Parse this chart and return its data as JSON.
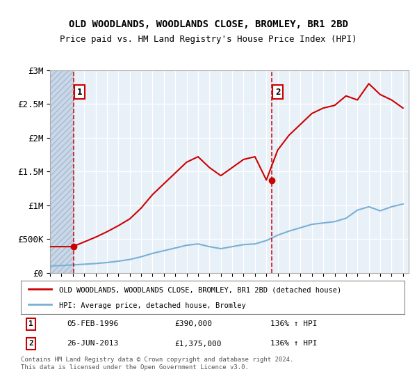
{
  "title": "OLD WOODLANDS, WOODLANDS CLOSE, BROMLEY, BR1 2BD",
  "subtitle": "Price paid vs. HM Land Registry's House Price Index (HPI)",
  "ylabel": "",
  "ylim": [
    0,
    3000000
  ],
  "yticks": [
    0,
    500000,
    1000000,
    1500000,
    2000000,
    2500000,
    3000000
  ],
  "ytick_labels": [
    "£0",
    "£500K",
    "£1M",
    "£1.5M",
    "£2M",
    "£2.5M",
    "£3M"
  ],
  "xlim_start": 1994.0,
  "xlim_end": 2025.5,
  "xticks": [
    1994,
    1995,
    1996,
    1997,
    1998,
    1999,
    2000,
    2001,
    2002,
    2003,
    2004,
    2005,
    2006,
    2007,
    2008,
    2009,
    2010,
    2011,
    2012,
    2013,
    2014,
    2015,
    2016,
    2017,
    2018,
    2019,
    2020,
    2021,
    2022,
    2023,
    2024,
    2025
  ],
  "background_color": "#ffffff",
  "plot_bg_color": "#e8f0f8",
  "hatch_color": "#c8d0d8",
  "grid_color": "#ffffff",
  "hpi_line_color": "#7ab0d4",
  "price_line_color": "#cc0000",
  "annotation_color": "#cc0000",
  "purchase1_x": 1996.09,
  "purchase1_y": 390000,
  "purchase1_label": "1",
  "purchase2_x": 2013.48,
  "purchase2_y": 1375000,
  "purchase2_label": "2",
  "legend_price_label": "OLD WOODLANDS, WOODLANDS CLOSE, BROMLEY, BR1 2BD (detached house)",
  "legend_hpi_label": "HPI: Average price, detached house, Bromley",
  "table_row1": [
    "1",
    "05-FEB-1996",
    "£390,000",
    "136% ↑ HPI"
  ],
  "table_row2": [
    "2",
    "26-JUN-2013",
    "£1,375,000",
    "136% ↑ HPI"
  ],
  "footer": "Contains HM Land Registry data © Crown copyright and database right 2024.\nThis data is licensed under the Open Government Licence v3.0.",
  "hpi_years": [
    1994,
    1995,
    1996,
    1997,
    1998,
    1999,
    2000,
    2001,
    2002,
    2003,
    2004,
    2005,
    2006,
    2007,
    2008,
    2009,
    2010,
    2011,
    2012,
    2013,
    2014,
    2015,
    2016,
    2017,
    2018,
    2019,
    2020,
    2021,
    2022,
    2023,
    2024,
    2025
  ],
  "hpi_values": [
    105000,
    110000,
    120000,
    130000,
    140000,
    155000,
    175000,
    200000,
    240000,
    290000,
    330000,
    370000,
    410000,
    430000,
    390000,
    360000,
    390000,
    420000,
    430000,
    480000,
    560000,
    620000,
    670000,
    720000,
    740000,
    760000,
    810000,
    930000,
    980000,
    920000,
    980000,
    1020000
  ],
  "price_years": [
    1994,
    1995,
    1996,
    1997,
    1998,
    1999,
    2000,
    2001,
    2002,
    2003,
    2004,
    2005,
    2006,
    2007,
    2008,
    2009,
    2010,
    2011,
    2012,
    2013,
    2014,
    2015,
    2016,
    2017,
    2018,
    2019,
    2020,
    2021,
    2022,
    2023,
    2024,
    2025
  ],
  "price_values": [
    390000,
    390000,
    390000,
    460000,
    530000,
    610000,
    700000,
    800000,
    960000,
    1160000,
    1320000,
    1480000,
    1640000,
    1720000,
    1560000,
    1440000,
    1560000,
    1680000,
    1720000,
    1375000,
    1820000,
    2040000,
    2200000,
    2360000,
    2440000,
    2480000,
    2620000,
    2560000,
    2800000,
    2640000,
    2560000,
    2440000
  ]
}
